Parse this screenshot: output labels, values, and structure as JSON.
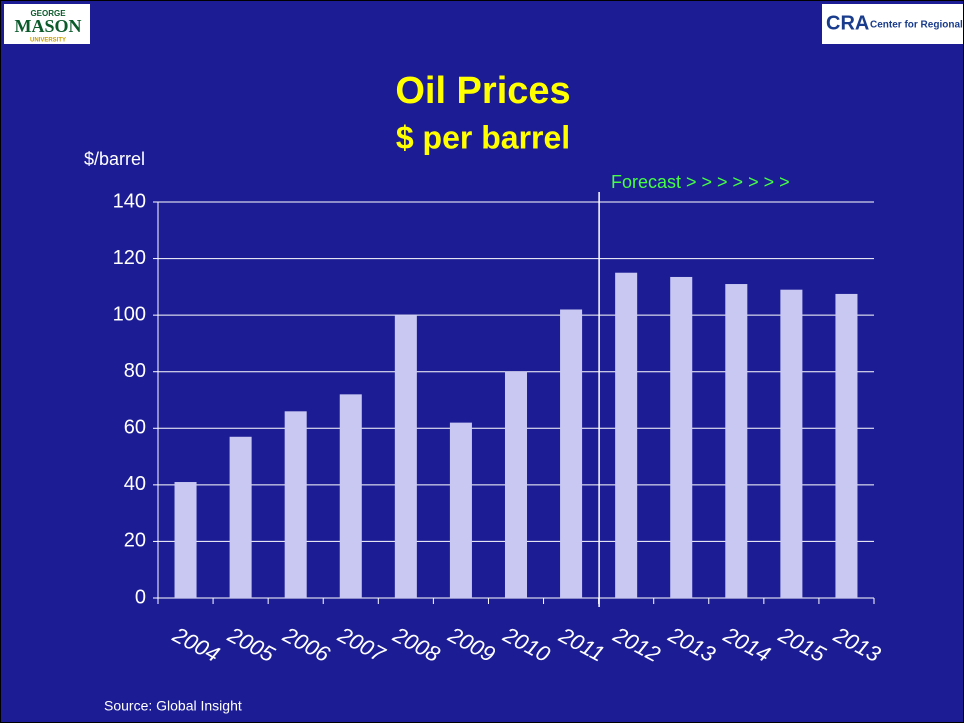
{
  "header": {
    "left_logo": [
      "GEORGE",
      "MASON",
      "UNIVERSITY"
    ],
    "right_logo": {
      "mark": "CRA",
      "text": "Center for Regional Analysis"
    }
  },
  "chart_data": {
    "type": "bar",
    "title": "Oil Prices",
    "subtitle": "$ per barrel",
    "y_label": "$/barrel",
    "annotation": "Forecast > > > > > > >",
    "source": "Source: Global Insight",
    "categories": [
      "2004",
      "2005",
      "2006",
      "2007",
      "2008",
      "2009",
      "2010",
      "2011",
      "2012",
      "2013",
      "2014",
      "2015",
      "2013"
    ],
    "values": [
      41,
      57,
      66,
      72,
      100,
      62,
      80,
      102,
      115,
      113.5,
      111,
      109,
      107.5
    ],
    "color": "#c8c8f2",
    "ylim": [
      0,
      140
    ],
    "yticks": [
      0,
      20,
      40,
      60,
      80,
      100,
      120,
      140
    ],
    "grid": true
  }
}
